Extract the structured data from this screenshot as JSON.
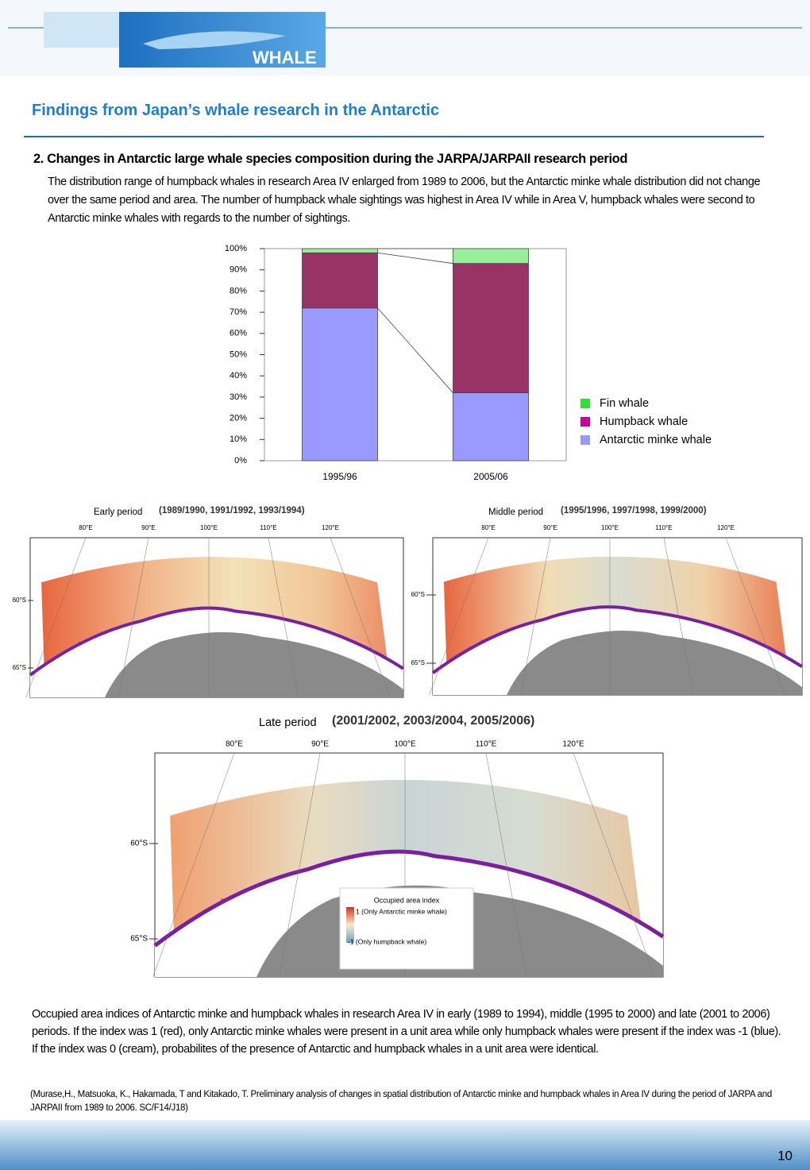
{
  "header": {
    "logo_text": "WHALE",
    "title": "Findings from Japan’s whale research in the Antarctic"
  },
  "section": {
    "heading": "2. Changes in Antarctic large whale species composition during the JARPA/JARPAII research period",
    "body": "The distribution range of humpback whales in research Area IV enlarged from 1989 to 2006, but the Antarctic minke whale distribution did not change over the same period and area. The number of humpback whale sightings was highest in Area IV while in Area V, humpback whales were second to Antarctic minke whales with regards to the number of sightings."
  },
  "chart_data": {
    "type": "stacked_bar",
    "categories": [
      "1995/96",
      "2005/06"
    ],
    "series": [
      {
        "name": "Antarctic minke whale",
        "color": "#9999ff",
        "values": [
          72,
          32
        ]
      },
      {
        "name": "Humpback whale",
        "color": "#993366",
        "values": [
          26,
          61
        ]
      },
      {
        "name": "Fin whale",
        "color": "#99ee99",
        "values": [
          2,
          7
        ]
      }
    ],
    "ylim": [
      0,
      100
    ],
    "yticks": [
      {
        "value": 0,
        "label": "0%"
      },
      {
        "value": 10,
        "label": "10%"
      },
      {
        "value": 20,
        "label": "20%"
      },
      {
        "value": 30,
        "label": "30%"
      },
      {
        "value": 40,
        "label": "40%"
      },
      {
        "value": 50,
        "label": "50%"
      },
      {
        "value": 60,
        "label": "60%"
      },
      {
        "value": 70,
        "label": "70%"
      },
      {
        "value": 80,
        "label": "80%"
      },
      {
        "value": 90,
        "label": "90%"
      },
      {
        "value": 100,
        "label": "100%"
      }
    ],
    "legend": "right"
  },
  "maps": [
    {
      "label": "Early period",
      "years": "(1989/1990, 1991/1992, 1993/1994)",
      "lon_labels": [
        "80°E",
        "90°E",
        "100°E",
        "110°E",
        "120°E"
      ],
      "lat_labels": [
        "60°S",
        "65°S"
      ]
    },
    {
      "label": "Middle period",
      "years": "(1995/1996, 1997/1998, 1999/2000)",
      "lon_labels": [
        "80°E",
        "90°E",
        "100°E",
        "110°E",
        "120°E"
      ],
      "lat_labels": [
        "60°S",
        "65°S"
      ]
    },
    {
      "label": "Late period",
      "years": "(2001/2002, 2003/2004, 2005/2006)",
      "lon_labels": [
        "80°E",
        "90°E",
        "100°E",
        "110°E",
        "120°E"
      ],
      "lat_labels": [
        "60°S",
        "65°S"
      ],
      "legend": {
        "title": "Occupied area index",
        "high": "1 (Only Antarctic minke whale)",
        "low": "-1 (Only humpback whale)"
      }
    }
  ],
  "caption": "Occupied area indices of Antarctic minke and humpback whales in research Area IV in early (1989 to 1994), middle (1995 to 2000) and late (2001 to 2006) periods. If the index was 1 (red), only Antarctic minke whales were present in a unit area while only humpback whales were present if the index was -1 (blue).  If the index was 0 (cream), probabilites of the presence of Antarctic and humpback whales in a unit area were identical.",
  "citation": "(Murase,H., Matsuoka, K., Hakamada, T and Kitakado, T.  Preliminary analysis of changes in spatial distribution of Antarctic minke and humpback whales in Area IV during the period of JARPA and JARPAII from 1989 to 2006. SC/F14/J18)",
  "page_number": "10"
}
